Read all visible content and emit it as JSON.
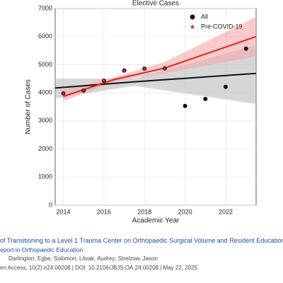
{
  "chart_data": {
    "type": "scatter",
    "title": "Elective Cases",
    "xlabel": "Academic Year",
    "ylabel": "Number of Cases",
    "xlim": [
      2013.6,
      2023.5
    ],
    "xticks": [
      2014,
      2016,
      2018,
      2020,
      2022
    ],
    "ylim": [
      0,
      7000
    ],
    "yticks": [
      0,
      1000,
      2000,
      3000,
      4000,
      5000,
      6000,
      7000
    ],
    "grid": true,
    "legend": "upper right",
    "series": [
      {
        "name": "All",
        "color": "#111111",
        "marker": "circle",
        "x": [
          2014,
          2015,
          2016,
          2017,
          2018,
          2019,
          2020,
          2021,
          2022,
          2023
        ],
        "values": [
          3980,
          4080,
          4430,
          4790,
          4860,
          4870,
          3530,
          3780,
          4210,
          5570
        ]
      },
      {
        "name": "Pre-COVID-19",
        "color": "#d62728",
        "marker": "star",
        "x": [
          2014,
          2015,
          2016,
          2017,
          2018,
          2019
        ],
        "values": [
          3980,
          4080,
          4430,
          4790,
          4860,
          4870
        ]
      }
    ],
    "fits": [
      {
        "color": "#111111",
        "band_color": "#bbbbbb",
        "x": [
          2013.6,
          2017.5,
          2023.5
        ],
        "values": [
          4170,
          4390,
          4690
        ],
        "lower": [
          3800,
          4250,
          3600
        ],
        "upper": [
          4500,
          4500,
          5700
        ]
      },
      {
        "color": "#d62728",
        "band_color": "#f4a6a6",
        "x": [
          2014,
          2016.5,
          2019,
          2023.5
        ],
        "values": [
          3870,
          4470,
          4880,
          6000
        ],
        "lower": [
          3700,
          4400,
          4700,
          5300
        ],
        "upper": [
          4100,
          4550,
          5100,
          6700
        ]
      }
    ]
  },
  "citation": {
    "title": "of Transitioning to a Level 1 Trauma Center on Orthopaedic Surgical Volume and Resident Education",
    "journal": "eport in Orthopaedic Education",
    "authors": "Darlington; Egbe, Solomon; Litvak, Audrey; Strelzow, Jason",
    "details": "en Access, 10(2):e24.00208 | DOI: 10.2106/JBJS.OA.24.00208 | May 22, 2025"
  }
}
